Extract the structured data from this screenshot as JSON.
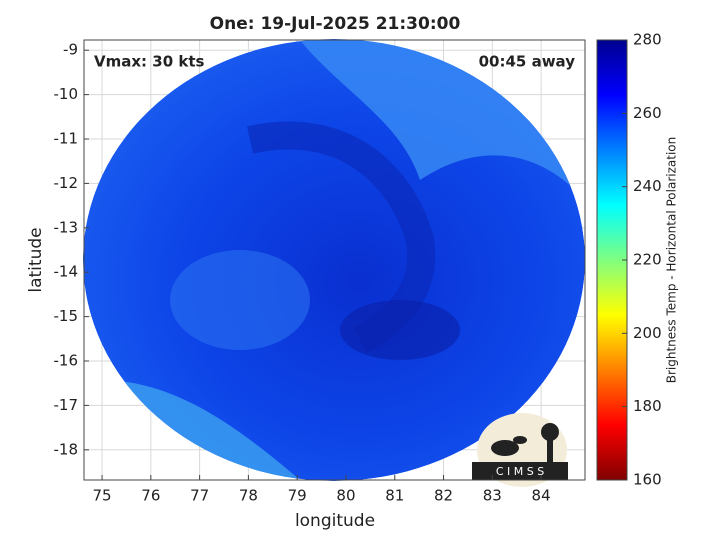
{
  "chart_data": {
    "type": "image",
    "title": "One: 19-Jul-2025 21:30:00",
    "annotations": [
      "Vmax: 30 kts",
      "00:45 away"
    ],
    "xlabel": "longitude",
    "ylabel": "latitude",
    "xlim": [
      74.63,
      84.9
    ],
    "xticks": [
      75,
      76,
      77,
      78,
      79,
      80,
      81,
      82,
      83,
      84
    ],
    "ylim": [
      -18.68,
      -8.77
    ],
    "yticks": [
      -18,
      -17,
      -16,
      -15,
      -14,
      -13,
      -12,
      -11,
      -10,
      -9
    ],
    "grid": true,
    "colorbar": {
      "label": "Brightness Temp - Horizontal Polarization",
      "clim": [
        160,
        280
      ],
      "ticks": [
        160,
        180,
        200,
        220,
        240,
        260,
        280
      ],
      "colormap": [
        "#800000",
        "#ff0000",
        "#ff8000",
        "#ffff00",
        "#80ff80",
        "#00ffff",
        "#0080ff",
        "#0000ff",
        "#00008f"
      ]
    }
  },
  "logo": {
    "text": "C I M S S"
  }
}
